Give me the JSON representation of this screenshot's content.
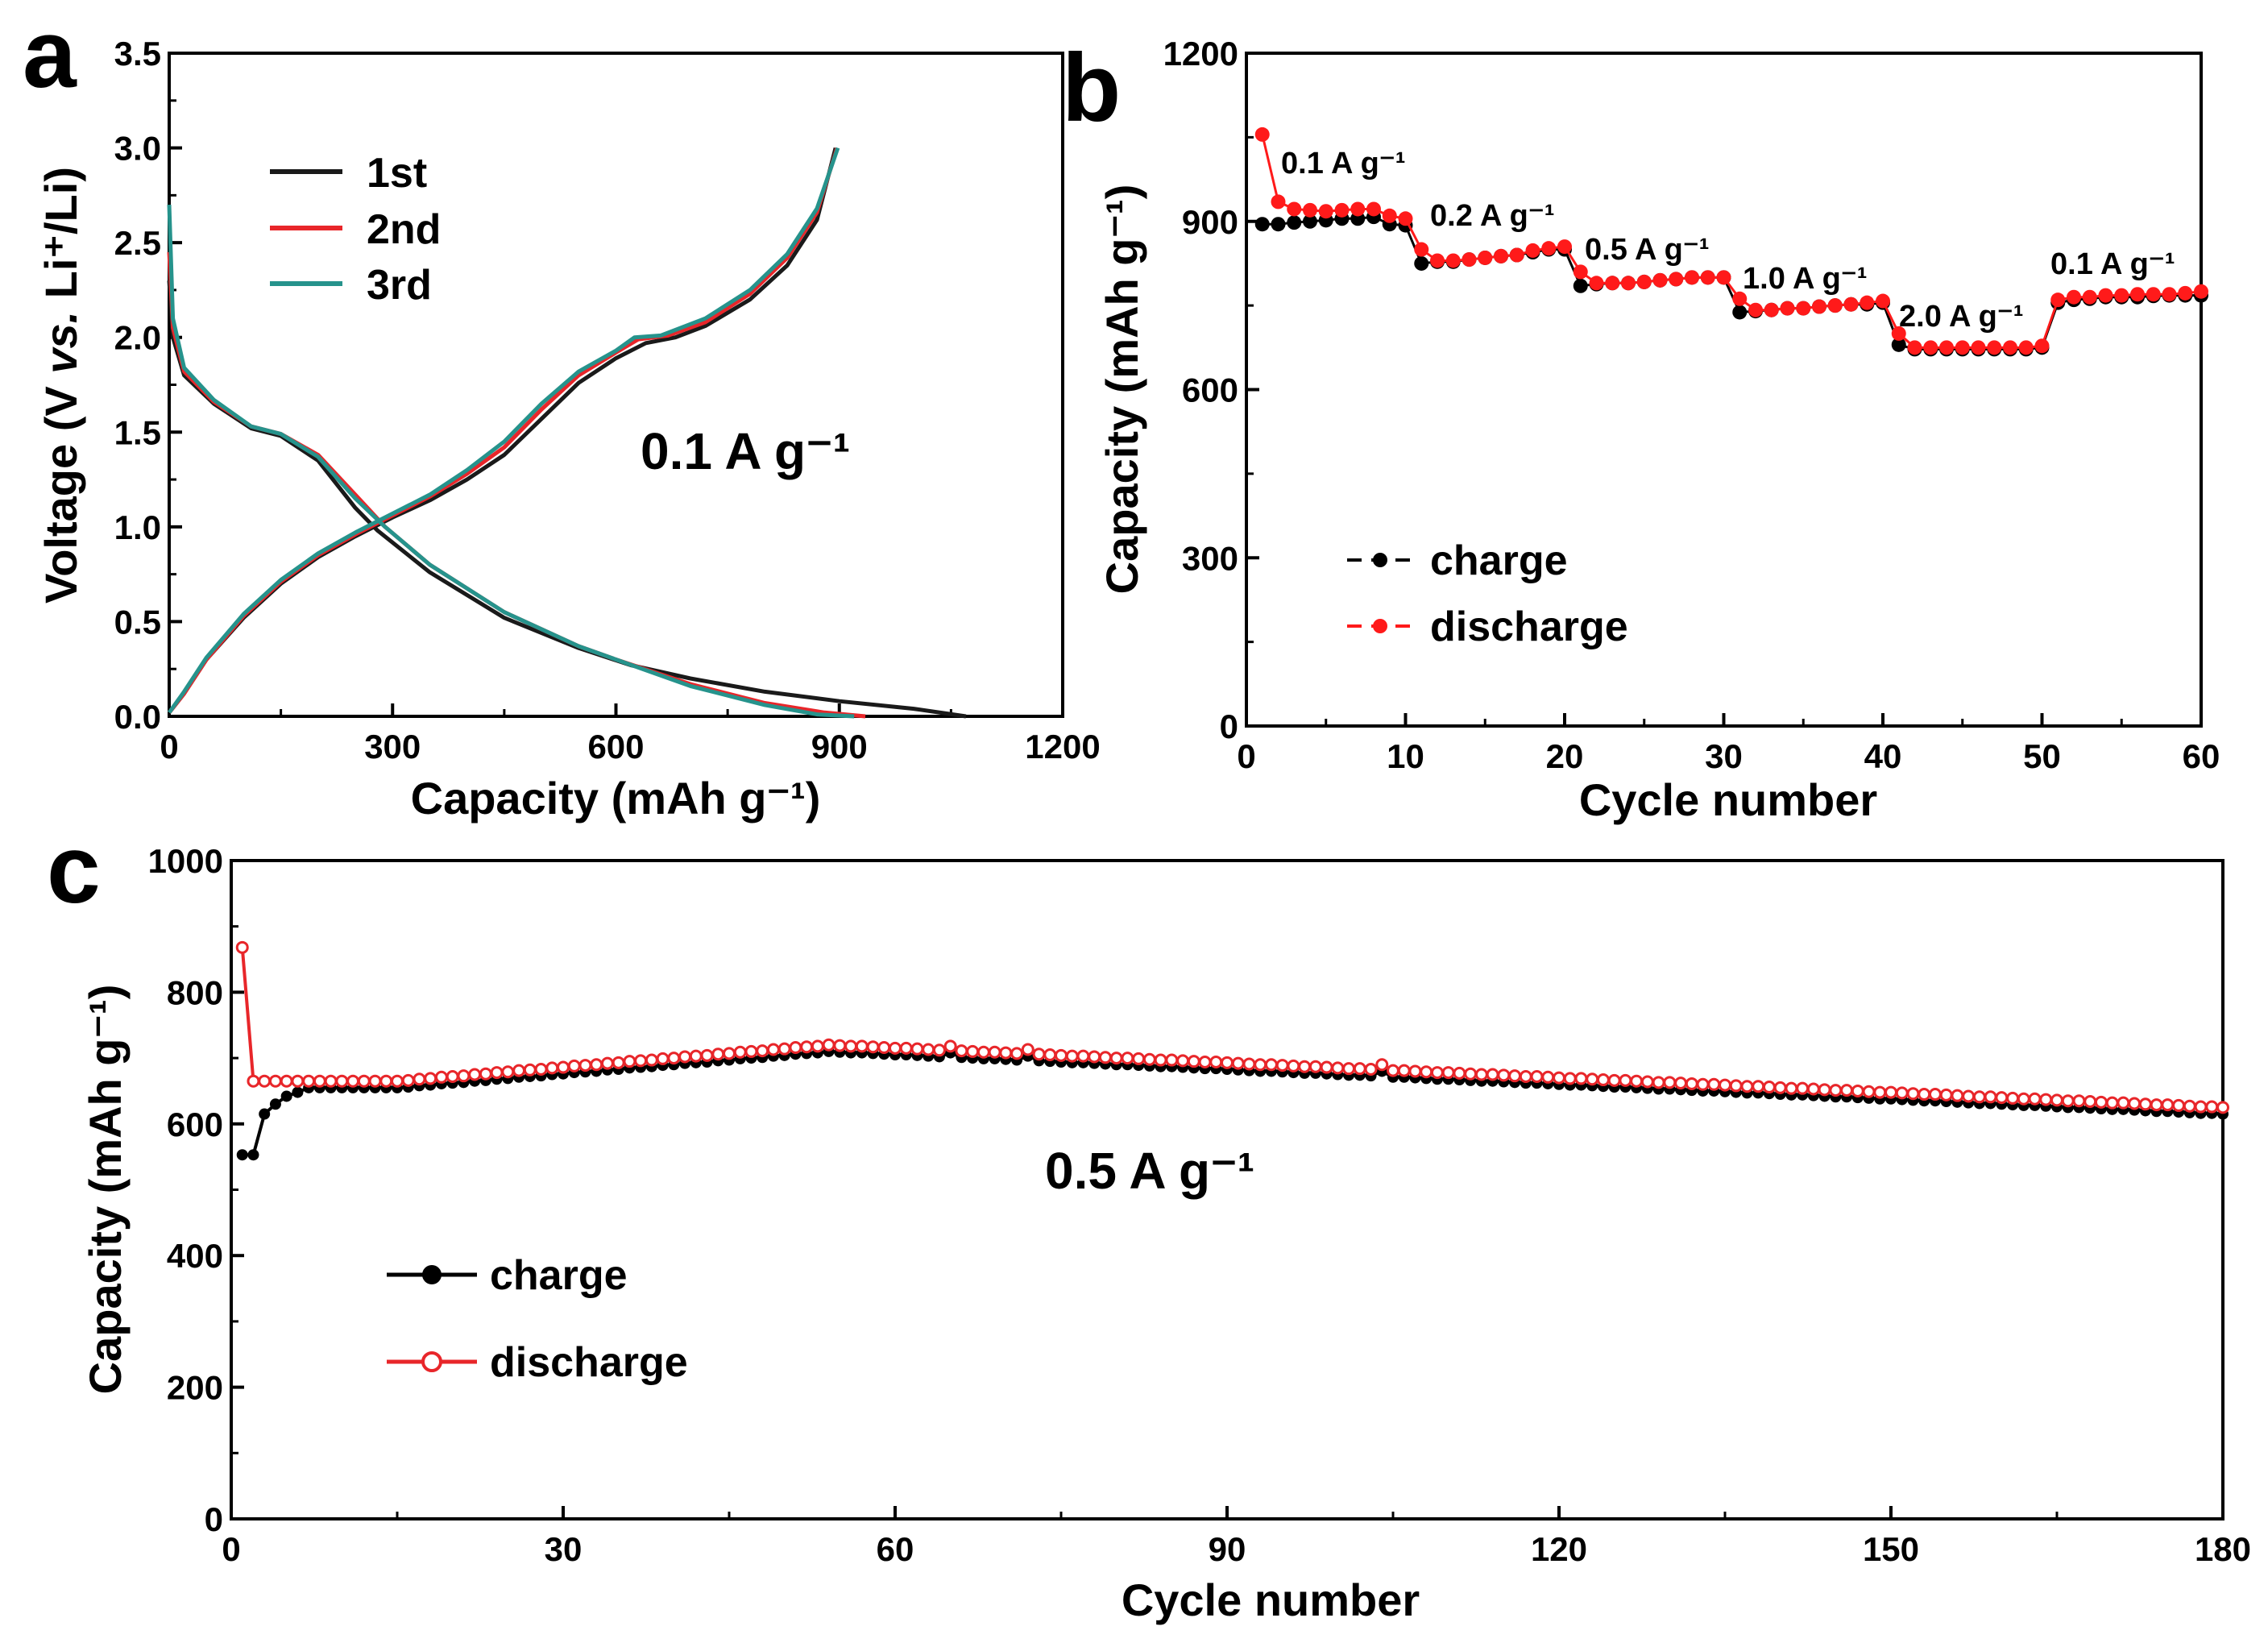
{
  "chart_data": [
    {
      "panel": "a",
      "type": "line",
      "xlabel": "Capacity (mAh g⁻¹)",
      "ylabel_parts": [
        "Voltage (V ",
        "vs.",
        " Li⁺/Li)"
      ],
      "xlim": [
        0,
        1200
      ],
      "ylim": [
        0,
        3.5
      ],
      "xticks": [
        0,
        300,
        600,
        900,
        1200
      ],
      "yticks": [
        "0.0",
        "0.5",
        "1.0",
        "1.5",
        "2.0",
        "2.5",
        "3.0",
        "3.5"
      ],
      "annotation": "0.1 A g⁻¹",
      "legend_position": "top-left",
      "series": [
        {
          "name": "1st",
          "color": "#1a1a1a",
          "charge": [
            [
              0,
              0.02
            ],
            [
              20,
              0.12
            ],
            [
              50,
              0.3
            ],
            [
              100,
              0.52
            ],
            [
              150,
              0.7
            ],
            [
              200,
              0.84
            ],
            [
              250,
              0.95
            ],
            [
              300,
              1.05
            ],
            [
              350,
              1.14
            ],
            [
              400,
              1.25
            ],
            [
              450,
              1.38
            ],
            [
              500,
              1.57
            ],
            [
              550,
              1.76
            ],
            [
              600,
              1.89
            ],
            [
              640,
              1.97
            ],
            [
              680,
              2.0
            ],
            [
              720,
              2.06
            ],
            [
              780,
              2.2
            ],
            [
              830,
              2.38
            ],
            [
              870,
              2.62
            ],
            [
              895,
              3.0
            ]
          ],
          "discharge": [
            [
              0,
              2.3
            ],
            [
              5,
              2.0
            ],
            [
              20,
              1.8
            ],
            [
              60,
              1.65
            ],
            [
              110,
              1.52
            ],
            [
              150,
              1.48
            ],
            [
              200,
              1.35
            ],
            [
              250,
              1.1
            ],
            [
              280,
              0.98
            ],
            [
              350,
              0.76
            ],
            [
              450,
              0.52
            ],
            [
              550,
              0.36
            ],
            [
              620,
              0.27
            ],
            [
              700,
              0.2
            ],
            [
              800,
              0.13
            ],
            [
              900,
              0.08
            ],
            [
              1000,
              0.04
            ],
            [
              1070,
              0.0
            ]
          ]
        },
        {
          "name": "2nd",
          "color": "#e8262a",
          "charge": [
            [
              0,
              0.02
            ],
            [
              20,
              0.12
            ],
            [
              50,
              0.3
            ],
            [
              100,
              0.53
            ],
            [
              150,
              0.71
            ],
            [
              200,
              0.85
            ],
            [
              250,
              0.96
            ],
            [
              300,
              1.06
            ],
            [
              350,
              1.16
            ],
            [
              400,
              1.28
            ],
            [
              450,
              1.42
            ],
            [
              500,
              1.62
            ],
            [
              550,
              1.8
            ],
            [
              600,
              1.92
            ],
            [
              630,
              1.99
            ],
            [
              670,
              2.01
            ],
            [
              720,
              2.08
            ],
            [
              780,
              2.23
            ],
            [
              830,
              2.42
            ],
            [
              870,
              2.66
            ],
            [
              897,
              3.0
            ]
          ],
          "discharge": [
            [
              0,
              2.45
            ],
            [
              5,
              2.05
            ],
            [
              20,
              1.82
            ],
            [
              60,
              1.66
            ],
            [
              110,
              1.53
            ],
            [
              150,
              1.49
            ],
            [
              200,
              1.38
            ],
            [
              250,
              1.17
            ],
            [
              290,
              1.0
            ],
            [
              350,
              0.8
            ],
            [
              450,
              0.55
            ],
            [
              550,
              0.37
            ],
            [
              600,
              0.3
            ],
            [
              700,
              0.17
            ],
            [
              800,
              0.07
            ],
            [
              880,
              0.02
            ],
            [
              935,
              0.0
            ]
          ]
        },
        {
          "name": "3rd",
          "color": "#26938c",
          "charge": [
            [
              0,
              0.02
            ],
            [
              20,
              0.13
            ],
            [
              50,
              0.31
            ],
            [
              100,
              0.54
            ],
            [
              150,
              0.72
            ],
            [
              200,
              0.86
            ],
            [
              250,
              0.97
            ],
            [
              300,
              1.07
            ],
            [
              350,
              1.17
            ],
            [
              400,
              1.3
            ],
            [
              450,
              1.45
            ],
            [
              500,
              1.65
            ],
            [
              550,
              1.82
            ],
            [
              600,
              1.93
            ],
            [
              625,
              2.0
            ],
            [
              660,
              2.01
            ],
            [
              720,
              2.1
            ],
            [
              780,
              2.25
            ],
            [
              830,
              2.44
            ],
            [
              870,
              2.68
            ],
            [
              898,
              3.0
            ]
          ],
          "discharge": [
            [
              0,
              2.7
            ],
            [
              5,
              2.1
            ],
            [
              20,
              1.84
            ],
            [
              60,
              1.67
            ],
            [
              110,
              1.53
            ],
            [
              150,
              1.49
            ],
            [
              200,
              1.37
            ],
            [
              250,
              1.15
            ],
            [
              290,
              1.0
            ],
            [
              350,
              0.8
            ],
            [
              450,
              0.55
            ],
            [
              550,
              0.37
            ],
            [
              600,
              0.3
            ],
            [
              700,
              0.16
            ],
            [
              800,
              0.06
            ],
            [
              870,
              0.01
            ],
            [
              920,
              0.0
            ]
          ]
        }
      ]
    },
    {
      "panel": "b",
      "type": "line",
      "xlabel": "Cycle number",
      "ylabel": "Capacity (mAh g⁻¹)",
      "xlim": [
        0,
        60
      ],
      "ylim": [
        0,
        1200
      ],
      "xticks": [
        0,
        10,
        20,
        30,
        40,
        50,
        60
      ],
      "yticks": [
        0,
        300,
        600,
        900,
        1200
      ],
      "legend_position": "bottom-left",
      "annotations": [
        "0.1 A g⁻¹",
        "0.2 A g⁻¹",
        "0.5 A g⁻¹",
        "1.0 A g⁻¹",
        "2.0 A g⁻¹",
        "0.1 A g⁻¹"
      ],
      "series": [
        {
          "name": "charge",
          "color": "#000000",
          "values": [
            895,
            895,
            898,
            900,
            902,
            905,
            905,
            908,
            895,
            893,
            825,
            828,
            828,
            832,
            835,
            838,
            840,
            845,
            850,
            850,
            785,
            788,
            790,
            790,
            792,
            795,
            797,
            800,
            800,
            800,
            738,
            740,
            742,
            745,
            745,
            748,
            750,
            752,
            752,
            755,
            680,
            672,
            672,
            672,
            672,
            672,
            672,
            672,
            672,
            675,
            755,
            760,
            762,
            765,
            765,
            765,
            767,
            768,
            768,
            768
          ]
        },
        {
          "name": "discharge",
          "color": "#ff1a1a",
          "values": [
            1055,
            935,
            922,
            920,
            918,
            920,
            922,
            922,
            910,
            905,
            850,
            830,
            830,
            832,
            835,
            838,
            840,
            848,
            852,
            855,
            810,
            790,
            790,
            790,
            792,
            795,
            797,
            800,
            800,
            800,
            762,
            742,
            742,
            745,
            745,
            748,
            750,
            752,
            755,
            758,
            700,
            675,
            675,
            675,
            675,
            675,
            675,
            675,
            675,
            678,
            760,
            765,
            765,
            768,
            768,
            770,
            770,
            770,
            772,
            775
          ]
        }
      ]
    },
    {
      "panel": "c",
      "type": "line",
      "xlabel": "Cycle number",
      "ylabel": "Capacity (mAh g⁻¹)",
      "xlim": [
        0,
        180
      ],
      "ylim": [
        0,
        1000
      ],
      "xticks": [
        0,
        30,
        60,
        90,
        120,
        150,
        180
      ],
      "yticks": [
        0,
        200,
        400,
        600,
        800,
        1000
      ],
      "annotation": "0.5 A g⁻¹",
      "legend_position": "lower-left",
      "series": [
        {
          "name": "charge",
          "color": "#000000",
          "values": [
            553,
            553,
            615,
            630,
            642,
            648,
            655,
            655,
            655,
            655,
            655,
            655,
            655,
            655,
            655,
            656,
            658,
            659,
            661,
            662,
            663,
            665,
            666,
            668,
            669,
            671,
            672,
            673,
            675,
            676,
            678,
            679,
            680,
            682,
            683,
            685,
            686,
            687,
            689,
            690,
            692,
            693,
            694,
            696,
            697,
            699,
            700,
            701,
            703,
            704,
            706,
            707,
            708,
            710,
            709,
            708,
            708,
            707,
            706,
            705,
            705,
            704,
            703,
            702,
            708,
            701,
            700,
            699,
            699,
            698,
            697,
            703,
            696,
            695,
            694,
            693,
            693,
            692,
            691,
            690,
            690,
            689,
            688,
            687,
            687,
            686,
            685,
            684,
            684,
            683,
            682,
            681,
            680,
            680,
            679,
            678,
            677,
            677,
            676,
            675,
            674,
            674,
            673,
            680,
            671,
            671,
            670,
            669,
            668,
            668,
            667,
            666,
            665,
            665,
            664,
            663,
            662,
            662,
            661,
            660,
            659,
            659,
            658,
            657,
            656,
            656,
            655,
            654,
            653,
            653,
            652,
            651,
            650,
            650,
            649,
            648,
            647,
            647,
            646,
            645,
            644,
            644,
            643,
            642,
            641,
            641,
            640,
            639,
            638,
            638,
            637,
            636,
            635,
            635,
            634,
            633,
            632,
            631,
            631,
            630,
            629,
            628,
            628,
            627,
            626,
            625,
            625,
            624,
            623,
            622,
            622,
            621,
            620,
            619,
            619,
            618,
            617,
            616,
            616,
            615
          ]
        },
        {
          "name": "discharge",
          "color": "#e8262a",
          "values": [
            868,
            665,
            665,
            665,
            665,
            665,
            665,
            665,
            665,
            665,
            665,
            665,
            665,
            665,
            665,
            666,
            668,
            669,
            671,
            672,
            673,
            675,
            676,
            678,
            679,
            681,
            682,
            683,
            685,
            686,
            688,
            689,
            690,
            692,
            693,
            695,
            696,
            697,
            699,
            700,
            702,
            703,
            704,
            706,
            707,
            709,
            710,
            711,
            713,
            714,
            716,
            717,
            718,
            720,
            719,
            718,
            718,
            717,
            716,
            715,
            715,
            714,
            713,
            712,
            718,
            711,
            710,
            709,
            709,
            708,
            707,
            713,
            706,
            705,
            704,
            703,
            703,
            702,
            701,
            700,
            700,
            699,
            698,
            697,
            697,
            696,
            695,
            694,
            694,
            693,
            692,
            691,
            690,
            690,
            689,
            688,
            687,
            687,
            686,
            685,
            684,
            684,
            683,
            690,
            681,
            681,
            680,
            679,
            678,
            678,
            677,
            676,
            675,
            675,
            674,
            673,
            672,
            672,
            671,
            670,
            669,
            669,
            668,
            667,
            666,
            666,
            665,
            664,
            663,
            663,
            662,
            661,
            660,
            660,
            659,
            658,
            657,
            657,
            656,
            655,
            654,
            654,
            653,
            652,
            651,
            651,
            650,
            649,
            648,
            648,
            647,
            646,
            645,
            645,
            644,
            643,
            642,
            641,
            641,
            640,
            639,
            638,
            638,
            637,
            636,
            635,
            635,
            634,
            633,
            632,
            632,
            631,
            630,
            629,
            629,
            628,
            627,
            626,
            626,
            625
          ]
        }
      ]
    }
  ],
  "panel_labels": [
    "a",
    "b",
    "c"
  ]
}
